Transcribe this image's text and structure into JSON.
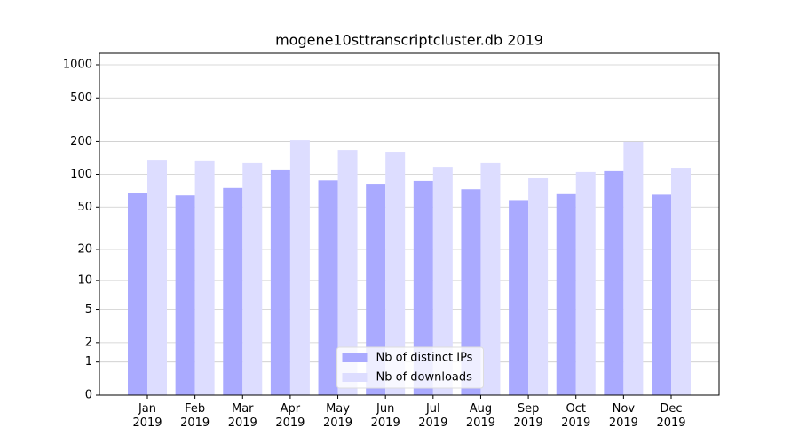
{
  "chart_data": {
    "type": "bar",
    "title": "mogene10sttranscriptcluster.db 2019",
    "categories": [
      "Jan\n2019",
      "Feb\n2019",
      "Mar\n2019",
      "Apr\n2019",
      "May\n2019",
      "Jun\n2019",
      "Jul\n2019",
      "Aug\n2019",
      "Sep\n2019",
      "Oct\n2019",
      "Nov\n2019",
      "Dec\n2019"
    ],
    "series": [
      {
        "name": "Nb of distinct IPs",
        "color": "#aaaaff",
        "values": [
          68,
          64,
          75,
          111,
          88,
          82,
          87,
          73,
          58,
          67,
          107,
          65
        ]
      },
      {
        "name": "Nb of downloads",
        "color": "#ddddff",
        "values": [
          136,
          134,
          129,
          205,
          167,
          161,
          117,
          129,
          92,
          105,
          198,
          115
        ]
      }
    ],
    "yscale": "log1p",
    "ylim": [
      0,
      1273
    ],
    "yticks": [
      0,
      1,
      2,
      5,
      10,
      20,
      50,
      100,
      200,
      500,
      1000
    ],
    "grid": true,
    "legend": "lower center"
  }
}
